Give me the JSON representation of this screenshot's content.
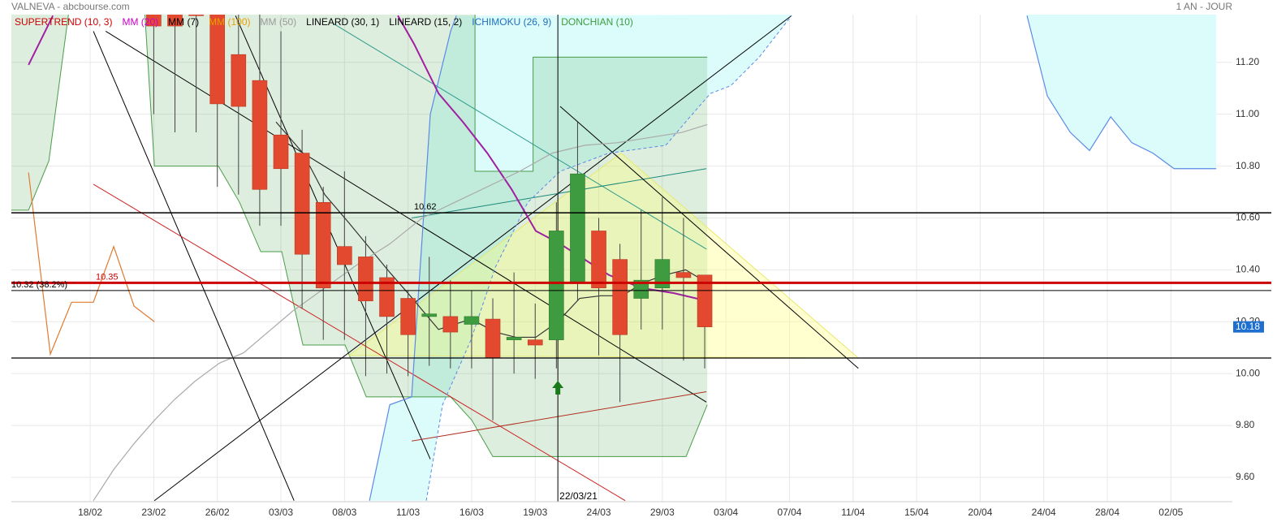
{
  "chart_data": {
    "type": "candlestick",
    "title": "VALNEVA - abcbourse.com",
    "period": "1 AN - JOUR",
    "xlim": [
      -3.72,
      53.9
    ],
    "xticks": [
      {
        "value": 0,
        "label": "18/02"
      },
      {
        "value": 3,
        "label": "23/02"
      },
      {
        "value": 6,
        "label": "26/02"
      },
      {
        "value": 9,
        "label": "03/03"
      },
      {
        "value": 12,
        "label": "08/03"
      },
      {
        "value": 15,
        "label": "11/03"
      },
      {
        "value": 18,
        "label": "16/03"
      },
      {
        "value": 21,
        "label": "19/03"
      },
      {
        "value": 24,
        "label": "24/03"
      },
      {
        "value": 27,
        "label": "29/03"
      },
      {
        "value": 30,
        "label": "03/04"
      },
      {
        "value": 33,
        "label": "07/04"
      },
      {
        "value": 36,
        "label": "11/04"
      },
      {
        "value": 39,
        "label": "15/04"
      },
      {
        "value": 42,
        "label": "20/04"
      },
      {
        "value": 45,
        "label": "24/04"
      },
      {
        "value": 48,
        "label": "28/04"
      },
      {
        "value": 51,
        "label": "02/05"
      }
    ],
    "ylim": [
      9.506,
      11.384
    ],
    "yticks": [
      {
        "value": 9.6,
        "label": "9.60"
      },
      {
        "value": 9.8,
        "label": "9.80"
      },
      {
        "value": 10,
        "label": "10.00"
      },
      {
        "value": 10.2,
        "label": "10.20"
      },
      {
        "value": 10.4,
        "label": "10.40"
      },
      {
        "value": 10.6,
        "label": "10.60"
      },
      {
        "value": 10.8,
        "label": "10.80"
      },
      {
        "value": 11,
        "label": "11.00"
      },
      {
        "value": 11.2,
        "label": "11.20"
      }
    ],
    "grid": true,
    "colors": {
      "up": "#3f9b3f",
      "down": "#e2492f"
    },
    "candles": {
      "x": [
        3,
        4,
        5,
        6,
        7,
        8,
        9,
        10,
        11,
        12,
        13,
        14,
        15,
        16,
        17,
        18,
        19,
        20,
        21,
        22,
        23,
        24,
        25,
        26,
        27,
        28,
        29
      ],
      "open": [
        11.4,
        11.4,
        11.42,
        11.4,
        11.23,
        11.13,
        10.92,
        10.85,
        10.66,
        10.49,
        10.45,
        10.37,
        10.29,
        10.22,
        10.22,
        10.19,
        10.21,
        10.13,
        10.13,
        10.13,
        10.35,
        10.55,
        10.44,
        10.29,
        10.33,
        10.39,
        10.38
      ],
      "high": [
        11.4,
        11.4,
        11.42,
        11.4,
        11.4,
        11.4,
        11.32,
        10.94,
        10.72,
        10.78,
        10.53,
        10.42,
        10.32,
        10.45,
        10.36,
        10.32,
        10.29,
        10.39,
        10.27,
        10.66,
        10.97,
        10.6,
        10.5,
        10.63,
        10.68,
        10.6,
        10.38
      ],
      "low": [
        11.0,
        10.93,
        10.93,
        10.72,
        10.69,
        10.57,
        10.57,
        10.25,
        10.13,
        10.13,
        9.99,
        10.0,
        9.99,
        10.03,
        10.02,
        10.02,
        9.82,
        10.0,
        9.98,
        10.02,
        10.28,
        10.07,
        9.89,
        10.17,
        10.17,
        10.05,
        10.02
      ],
      "close": [
        11.34,
        11.34,
        11.38,
        11.04,
        11.03,
        10.71,
        10.79,
        10.46,
        10.33,
        10.42,
        10.28,
        10.22,
        10.15,
        10.23,
        10.16,
        10.22,
        10.06,
        10.14,
        10.11,
        10.55,
        10.77,
        10.33,
        10.15,
        10.36,
        10.44,
        10.37,
        10.18
      ]
    },
    "series": [
      {
        "name": "SUPERTREND (10, 3)",
        "color": "#cc0000",
        "line_color": "#e07a30",
        "x": [
          -2.91,
          -1.88,
          -0.88,
          0.15,
          1.11,
          2.07,
          3.03
        ],
        "values": [
          10.775,
          10.075,
          10.275,
          10.275,
          10.49,
          10.26,
          10.2
        ]
      },
      {
        "name": "MM (20)",
        "color": "#cc00cc",
        "line_color": "#a020a0",
        "x": [
          -2.91,
          -1.76,
          0,
          14.52,
          15.29,
          16.44,
          17.59,
          18.74,
          19.89,
          21.03,
          22.18,
          23.33,
          24.48,
          26.02,
          27.55,
          29.12
        ],
        "values": [
          11.19,
          11.38,
          null,
          11.38,
          11.27,
          11.08,
          10.97,
          10.85,
          10.71,
          10.55,
          10.5,
          10.44,
          10.38,
          10.33,
          10.31,
          10.28
        ]
      },
      {
        "name": "MM (7)",
        "color": "#000000",
        "line_color": "#333333",
        "x": [
          8.77,
          10.04,
          11.07,
          12.22,
          14.14,
          15.1,
          16.44,
          17.97,
          19.12,
          20.08,
          21.03,
          22.07,
          23.1,
          24.1,
          25.1,
          26.1,
          27.1,
          28.1,
          29.12
        ],
        "values": [
          10.97,
          10.85,
          10.69,
          10.58,
          10.39,
          10.3,
          10.17,
          10.21,
          10.16,
          10.14,
          10.14,
          10.2,
          10.29,
          10.3,
          10.3,
          10.35,
          10.38,
          10.4,
          10.35
        ]
      },
      {
        "name": "MM (100)",
        "color": "#e6a000"
      },
      {
        "name": "MM (50)",
        "color": "#999999",
        "line_color": "#aaaaaa",
        "x": [
          0.15,
          1.11,
          2.07,
          3.03,
          3.98,
          4.94,
          6.09,
          7.24,
          8.39,
          9.54,
          11.07,
          12.6,
          14.14,
          15.67,
          17.2,
          18.74,
          20.27,
          21.8,
          23.33,
          24.86,
          26.4,
          27.93,
          29.12
        ],
        "values": [
          9.51,
          9.63,
          9.73,
          9.82,
          9.9,
          9.97,
          10.04,
          10.08,
          10.16,
          10.24,
          10.33,
          10.42,
          10.5,
          10.6,
          10.66,
          10.72,
          10.78,
          10.85,
          10.88,
          10.89,
          10.91,
          10.93,
          10.96
        ]
      },
      {
        "name": "LINEARD (30, 1)",
        "color": "#000000"
      },
      {
        "name": "LINEARD (15, 2)",
        "color": "#000000"
      },
      {
        "name": "ICHIMOKU (26, 9)",
        "color": "#1f6fbf",
        "line_color": "#5a8ae6",
        "fill": "#dcfcfc",
        "x": [
          13.18,
          14.14,
          15.17,
          16.05,
          17.01,
          17.28
        ],
        "values": [
          9.51,
          9.88,
          9.91,
          11.0,
          11.32,
          11.38
        ],
        "x2": [
          15.86,
          16.63,
          17.97,
          19.12,
          20.65,
          22.18,
          24.48,
          27.16,
          28.31,
          29.27,
          30.23,
          31.57,
          33.1
        ],
        "values2": [
          9.51,
          9.88,
          10.13,
          10.41,
          10.66,
          10.78,
          10.85,
          10.88,
          10.99,
          11.08,
          11.11,
          11.22,
          11.38
        ],
        "x3": [
          44.21,
          45.17,
          46.25,
          47.16,
          48.16,
          49.16,
          50.15,
          51.15,
          53.14
        ],
        "values3": [
          11.38,
          11.07,
          10.93,
          10.86,
          10.99,
          10.89,
          10.85,
          10.79,
          10.79
        ]
      },
      {
        "name": "DONCHIAN (10)",
        "color": "#3c9c3c",
        "line_color": "#4a9c4a",
        "fill": "rgba(60,156,60,0.17)",
        "x": [
          -3.72,
          -1.0,
          0,
          2.57,
          18.16,
          18.16,
          20.9,
          20.9,
          29.12
        ],
        "values": [
          11.4,
          11.4,
          null,
          11.4,
          11.4,
          10.78,
          10.78,
          11.22,
          11.22
        ],
        "x2": [
          -3.72,
          -2.91,
          -1.95,
          -1.0,
          0,
          2.57,
          3.03,
          6.05,
          7.05,
          8.05,
          9.04,
          10.04,
          12.03,
          13.03,
          17.01,
          18.01,
          19.0,
          28.12,
          29.12
        ],
        "values2": [
          10.63,
          10.63,
          10.82,
          11.4,
          null,
          11.4,
          10.8,
          10.8,
          10.66,
          10.47,
          10.47,
          10.11,
          10.11,
          9.91,
          9.91,
          9.82,
          9.68,
          9.68,
          9.88
        ]
      }
    ],
    "triangle": {
      "x": [
        12.22,
        25.06,
        36.25
      ],
      "values": [
        10.07,
        10.85,
        10.06
      ]
    },
    "lines": [
      {
        "x": [
          0.15,
          9.62
        ],
        "values": [
          11.32,
          9.51
        ],
        "color": "#000000"
      },
      {
        "x": [
          0.73,
          29.08
        ],
        "values": [
          11.32,
          9.89
        ],
        "color": "#000000"
      },
      {
        "x": [
          6.86,
          16.05
        ],
        "values": [
          11.38,
          9.67
        ],
        "color": "#000000"
      },
      {
        "x": [
          3.03,
          33.1
        ],
        "values": [
          9.51,
          11.38
        ],
        "color": "#000000"
      },
      {
        "x": [
          0.15,
          25.25
        ],
        "values": [
          10.73,
          9.51
        ],
        "color": "#cc2020"
      },
      {
        "x": [
          15.17,
          29.08
        ],
        "values": [
          9.74,
          9.93
        ],
        "color": "#b03020"
      },
      {
        "x": [
          11.46,
          29.08
        ],
        "values": [
          11.35,
          10.48
        ],
        "color": "#2a9a8a"
      },
      {
        "x": [
          15.17,
          29.08
        ],
        "values": [
          10.6,
          10.79
        ],
        "color": "#1f8a7a"
      },
      {
        "x": [
          22.18,
          36.25
        ],
        "values": [
          11.03,
          10.02
        ],
        "color": "#000000"
      }
    ],
    "levels": [
      {
        "value": 10.62,
        "label": "10.62",
        "color": "#000000",
        "width": 1.5
      },
      {
        "value": 10.35,
        "label": "10.35",
        "color": "#cc0000",
        "width": 3
      },
      {
        "value": 10.32,
        "label": "10.32  (38.2%)",
        "color": "#000000",
        "width": 1
      },
      {
        "value": 10.06,
        "color": "#000000",
        "width": 1.2
      }
    ],
    "crosshair": {
      "x": 22.07,
      "label": "22/03/21"
    },
    "last": {
      "value": 10.18,
      "label": "10.18"
    }
  }
}
